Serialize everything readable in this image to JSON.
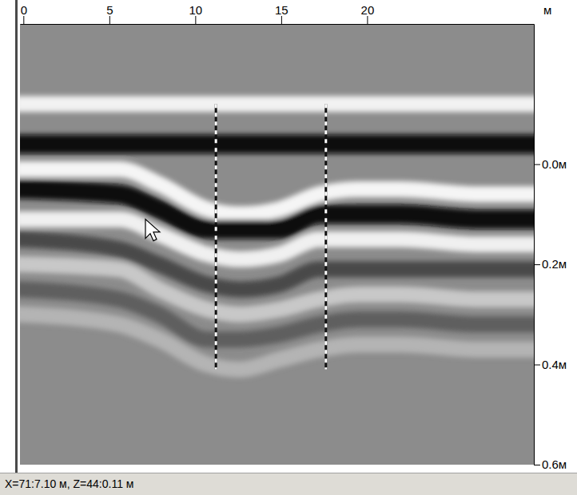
{
  "chart_data": {
    "type": "radargram",
    "xlabel": "м",
    "x": [
      0,
      5.6,
      7.9,
      10.7,
      12.6,
      14.9,
      17.2,
      19.5,
      21.9,
      26.5,
      29.7
    ],
    "xlim": [
      -0.2,
      29.7
    ],
    "xticks": [
      0,
      5,
      10,
      15,
      20
    ],
    "ylim": [
      -0.28,
      0.6
    ],
    "yticks": [
      {
        "value": 0,
        "label": "0.0м"
      },
      {
        "value": 0.2,
        "label": "0.2м"
      },
      {
        "value": 0.4,
        "label": "0.4м"
      },
      {
        "value": 0.6,
        "label": "0.6м"
      }
    ],
    "grid": false,
    "series": [
      {
        "color": "#f2f2f2",
        "values": [
          -0.12,
          -0.12,
          -0.12,
          -0.12,
          -0.12,
          -0.12,
          -0.12,
          -0.12,
          -0.12,
          -0.12,
          -0.12
        ]
      },
      {
        "color": "#0a0a0a",
        "values": [
          -0.04,
          -0.04,
          -0.04,
          -0.04,
          -0.04,
          -0.04,
          -0.04,
          -0.04,
          -0.04,
          -0.04,
          -0.04
        ]
      },
      {
        "color": "#f5f5f5",
        "values": [
          0.01,
          0.01,
          0.04,
          0.09,
          0.1,
          0.09,
          0.06,
          0.05,
          0.05,
          0.06,
          0.06
        ]
      },
      {
        "color": "#0a0a0a",
        "values": [
          0.05,
          0.06,
          0.09,
          0.13,
          0.13,
          0.13,
          0.1,
          0.1,
          0.1,
          0.11,
          0.11
        ]
      },
      {
        "color": "#f0f0f0",
        "values": [
          0.11,
          0.11,
          0.14,
          0.18,
          0.19,
          0.18,
          0.15,
          0.15,
          0.15,
          0.16,
          0.16
        ]
      },
      {
        "color": "#4a4a4a",
        "values": [
          0.15,
          0.17,
          0.2,
          0.24,
          0.25,
          0.24,
          0.21,
          0.21,
          0.21,
          0.21,
          0.21
        ]
      },
      {
        "color": "#c8c8c8",
        "values": [
          0.2,
          0.21,
          0.25,
          0.29,
          0.3,
          0.29,
          0.27,
          0.26,
          0.26,
          0.27,
          0.27
        ]
      },
      {
        "color": "#5e5e5e",
        "values": [
          0.25,
          0.27,
          0.3,
          0.35,
          0.35,
          0.34,
          0.32,
          0.31,
          0.31,
          0.32,
          0.32
        ]
      },
      {
        "color": "#b4b4b4",
        "values": [
          0.3,
          0.32,
          0.35,
          0.4,
          0.41,
          0.39,
          0.37,
          0.36,
          0.36,
          0.37,
          0.37
        ]
      }
    ],
    "markers": [
      11.2,
      17.6
    ],
    "cursor": {
      "x": 7.1,
      "z": 0.11
    },
    "status": "X=71:7.10 м, Z=44:0.11 м"
  }
}
